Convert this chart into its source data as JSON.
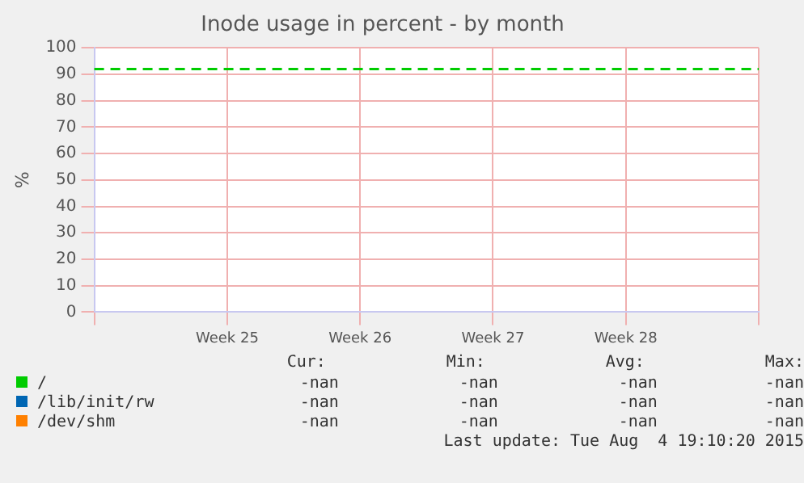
{
  "chart_data": {
    "type": "line",
    "title": "Inode usage in percent - by month",
    "ylabel": "%",
    "categories": [
      null,
      "Week 25",
      "Week 26",
      "Week 27",
      "Week 28",
      null
    ],
    "series": [
      {
        "name": "/",
        "color": "#00cc00",
        "values": [
          92,
          92,
          92,
          92,
          92,
          92
        ]
      },
      {
        "name": "/lib/init/rw",
        "color": "#0066b3",
        "values": [
          null,
          null,
          null,
          null,
          null,
          null
        ]
      },
      {
        "name": "/dev/shm",
        "color": "#ff8000",
        "values": [
          null,
          null,
          null,
          null,
          null,
          null
        ]
      }
    ],
    "ylim": [
      0,
      100
    ],
    "yticks": [
      0,
      10,
      20,
      30,
      40,
      50,
      60,
      70,
      80,
      90,
      100
    ],
    "grid": true,
    "legend": "bottom",
    "marker": "none",
    "line_style": "dashed",
    "annotations": [
      "Cur:",
      "Min:",
      "Avg:",
      "Max:",
      "-nan",
      "-nan",
      "-nan",
      "-nan",
      "-nan",
      "-nan",
      "-nan",
      "-nan",
      "-nan",
      "-nan",
      "-nan",
      "-nan",
      "Last update: Tue Aug  4 19:10:20 2015"
    ]
  }
}
